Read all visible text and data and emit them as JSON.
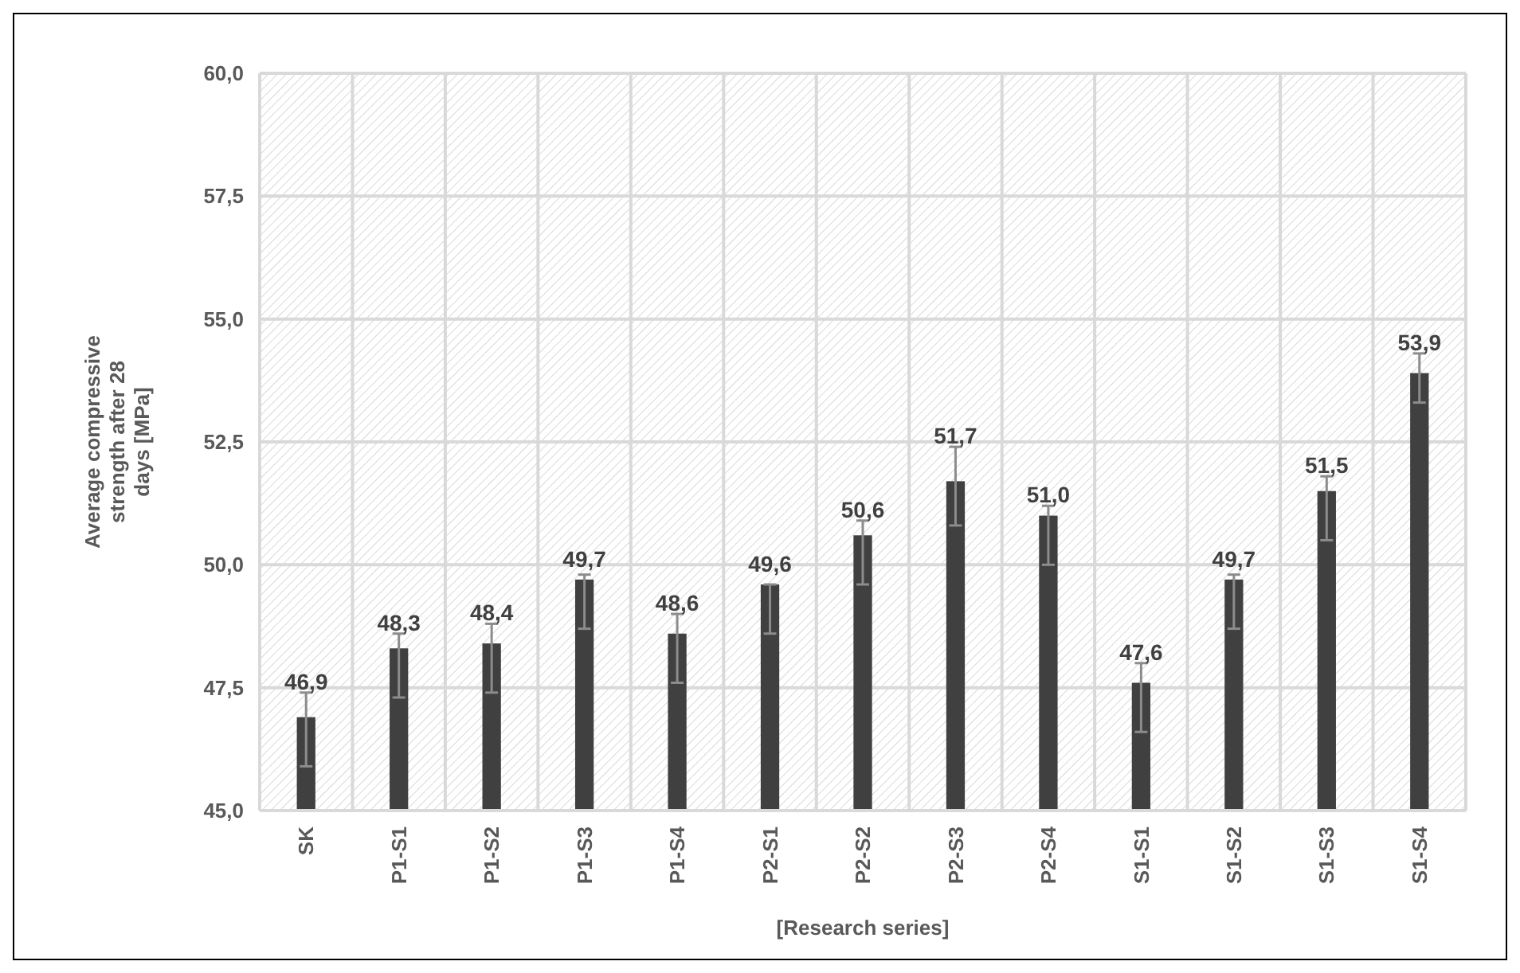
{
  "chart_data": {
    "type": "bar",
    "ylabel": "Average compressive strength after 28 days [MPa]",
    "xlabel": "[Research series]",
    "categories": [
      "SK",
      "P1-S1",
      "P1-S2",
      "P1-S3",
      "P1-S4",
      "P2-S1",
      "P2-S2",
      "P2-S3",
      "P2-S4",
      "S1-S1",
      "S1-S2",
      "S1-S3",
      "S1-S4"
    ],
    "values": [
      46.9,
      48.3,
      48.4,
      49.7,
      48.6,
      49.6,
      50.6,
      51.7,
      51.0,
      47.6,
      49.7,
      51.5,
      53.9
    ],
    "value_labels": [
      "46,9",
      "48,3",
      "48,4",
      "49,7",
      "48,6",
      "49,6",
      "50,6",
      "51,7",
      "51,0",
      "47,6",
      "49,7",
      "51,5",
      "53,9"
    ],
    "errors": [
      [
        45.9,
        47.4
      ],
      [
        47.3,
        48.6
      ],
      [
        47.4,
        48.8
      ],
      [
        48.7,
        49.8
      ],
      [
        47.6,
        49.0
      ],
      [
        48.6,
        49.6
      ],
      [
        49.6,
        50.9
      ],
      [
        50.8,
        52.4
      ],
      [
        50.0,
        51.2
      ],
      [
        46.6,
        48.0
      ],
      [
        48.7,
        49.8
      ],
      [
        50.5,
        51.8
      ],
      [
        53.3,
        54.3
      ]
    ],
    "color": "#404040",
    "ylim": [
      45,
      60
    ],
    "yticks": [
      {
        "value": 45,
        "label": "45,0"
      },
      {
        "value": 47.5,
        "label": "47,5"
      },
      {
        "value": 50,
        "label": "50,0"
      },
      {
        "value": 52.5,
        "label": "52,5"
      },
      {
        "value": 55,
        "label": "55,0"
      },
      {
        "value": 57.5,
        "label": "57,5"
      },
      {
        "value": 60,
        "label": "60,0"
      }
    ],
    "grid": true
  }
}
